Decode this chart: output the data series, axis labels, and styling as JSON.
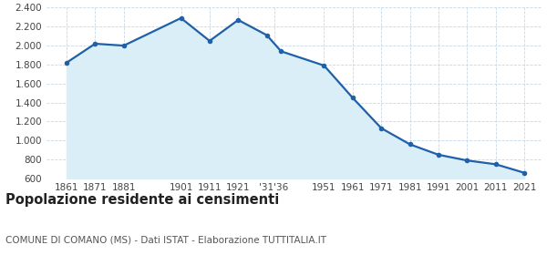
{
  "years": [
    1861,
    1871,
    1881,
    1901,
    1911,
    1921,
    1931,
    1936,
    1951,
    1961,
    1971,
    1981,
    1991,
    2001,
    2011,
    2021
  ],
  "population": [
    1820,
    2020,
    2000,
    2290,
    2050,
    2270,
    2110,
    1940,
    1790,
    1450,
    1130,
    960,
    850,
    790,
    750,
    660
  ],
  "xtick_labels": [
    "1861",
    "1871",
    "1881",
    "1901",
    "1911",
    "1921",
    "'31'36",
    "1951",
    "1961",
    "1971",
    "1981",
    "1991",
    "2001",
    "2011",
    "2021"
  ],
  "xtick_positions": [
    1861,
    1871,
    1881,
    1901,
    1911,
    1921,
    1933.5,
    1951,
    1961,
    1971,
    1981,
    1991,
    2001,
    2011,
    2021
  ],
  "xlim": [
    1854,
    2027
  ],
  "ylim": [
    600,
    2400
  ],
  "yticks": [
    600,
    800,
    1000,
    1200,
    1400,
    1600,
    1800,
    2000,
    2200,
    2400
  ],
  "line_color": "#2060a8",
  "fill_color": "#daeef8",
  "marker_color": "#2060a8",
  "background_color": "#ffffff",
  "grid_color": "#c5d8e8",
  "title": "Popolazione residente ai censimenti",
  "subtitle": "COMUNE DI COMANO (MS) - Dati ISTAT - Elaborazione TUTTITALIA.IT",
  "title_fontsize": 10.5,
  "subtitle_fontsize": 7.5
}
